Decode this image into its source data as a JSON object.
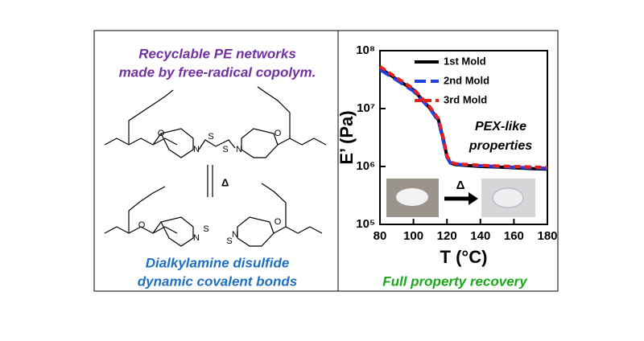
{
  "left_panel": {
    "title_lines": [
      "Recyclable PE networks",
      "made by free-radical copolym."
    ],
    "structure_labels": [
      "O",
      "N",
      "S",
      "S",
      "N",
      "O",
      "Δ",
      "O",
      "N",
      "S",
      "S",
      "N",
      "O"
    ],
    "bottom_lines": [
      "Dialkylamine disulfide",
      "dynamic covalent bonds"
    ]
  },
  "footer": "Full property recovery",
  "chart_data": {
    "type": "line",
    "xlabel": "T (°C)",
    "ylabel": "E’ (Pa)",
    "x": [
      80,
      90,
      100,
      110,
      115,
      118,
      120,
      122,
      125,
      130,
      140,
      150,
      160,
      170,
      180
    ],
    "series": [
      {
        "name": "1st Mold",
        "color": "#000000",
        "dash": "solid",
        "values": [
          50000000,
          32000000,
          21000000,
          10000000,
          6300000,
          2800000,
          1500000,
          1150000,
          1080000,
          1050000,
          1000000,
          980000,
          950000,
          920000,
          900000
        ]
      },
      {
        "name": "2nd Mold",
        "color": "#1f3fe0",
        "dash": "dashed",
        "values": [
          47000000,
          31000000,
          20000000,
          9800000,
          6000000,
          2600000,
          1450000,
          1150000,
          1100000,
          1070000,
          1030000,
          1000000,
          970000,
          950000,
          930000
        ]
      },
      {
        "name": "3rd Mold",
        "color": "#e8201c",
        "dash": "dotted",
        "values": [
          53000000,
          34000000,
          22000000,
          10500000,
          6600000,
          3000000,
          1550000,
          1200000,
          1120000,
          1090000,
          1050000,
          1020000,
          1000000,
          980000,
          960000
        ]
      }
    ],
    "xlim": [
      80,
      180
    ],
    "xticks": [
      80,
      100,
      120,
      140,
      160,
      180
    ],
    "ylim": [
      100000,
      100000000
    ],
    "yscale": "log",
    "yticks": [
      {
        "value": 100000,
        "label": "10⁵"
      },
      {
        "value": 1000000,
        "label": "10⁶"
      },
      {
        "value": 10000000,
        "label": "10⁷"
      },
      {
        "value": 100000000,
        "label": "10⁸"
      }
    ],
    "legend": "top-right",
    "annotations": [
      "PEX-like",
      "properties"
    ],
    "inset_label": "Δ"
  }
}
